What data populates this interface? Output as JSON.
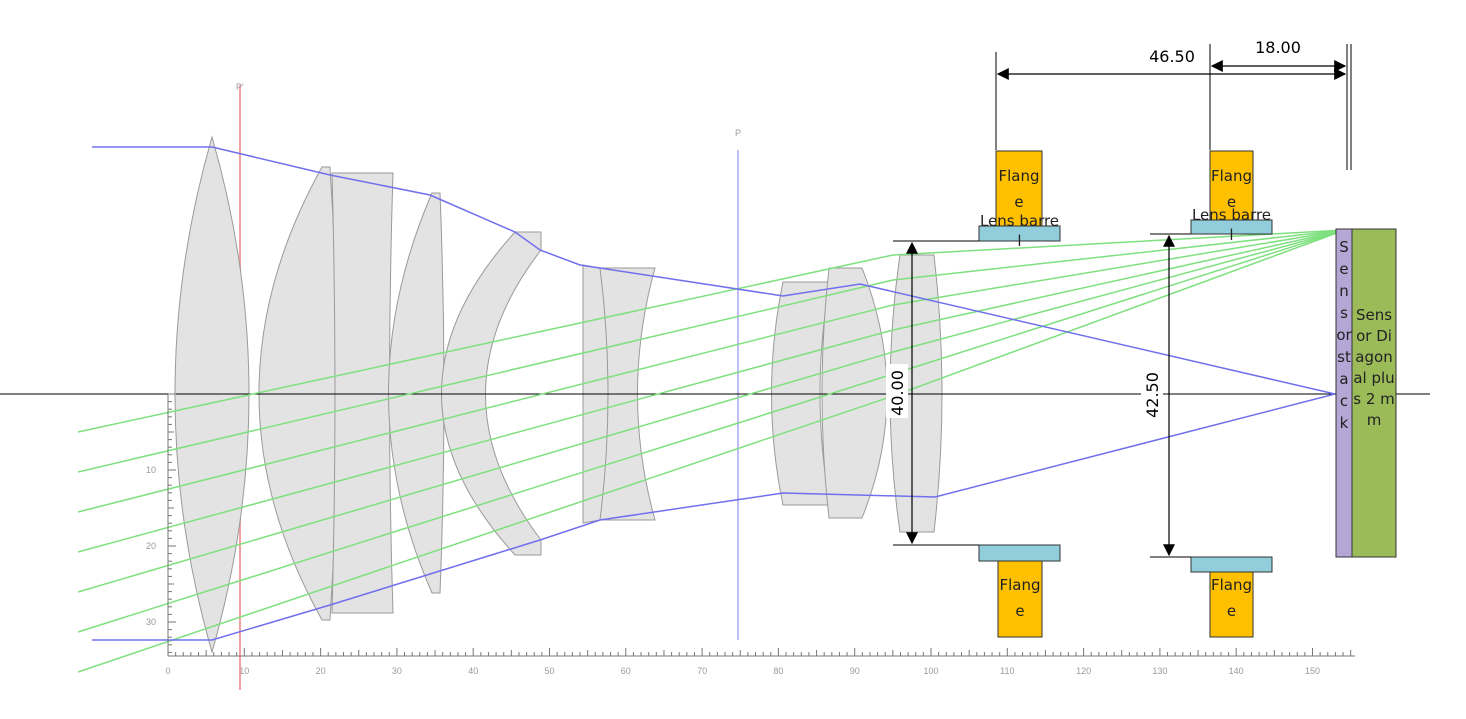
{
  "dimensions": {
    "overall": "46.50",
    "back": "18.00",
    "front_opening": "40.00",
    "rear_opening": "42.50"
  },
  "flanges": {
    "top_front": "Flange",
    "top_rear": "Flange",
    "bottom_front": "Flange",
    "bottom_rear": "Flange"
  },
  "barrels": {
    "front": "Lens barrel",
    "rear": "Lens barrel"
  },
  "sensor": {
    "stack": "Sensor stack",
    "diagonal": "Sensor Diagonal plus 2 mm"
  },
  "markers": {
    "entrance": "P'",
    "stop": "P"
  },
  "axis": {
    "x_ticks": [
      0,
      10,
      20,
      30,
      40,
      50,
      60,
      70,
      80,
      90,
      100,
      110,
      120,
      130,
      140,
      150
    ],
    "y_ticks": [
      10,
      20,
      30
    ]
  }
}
